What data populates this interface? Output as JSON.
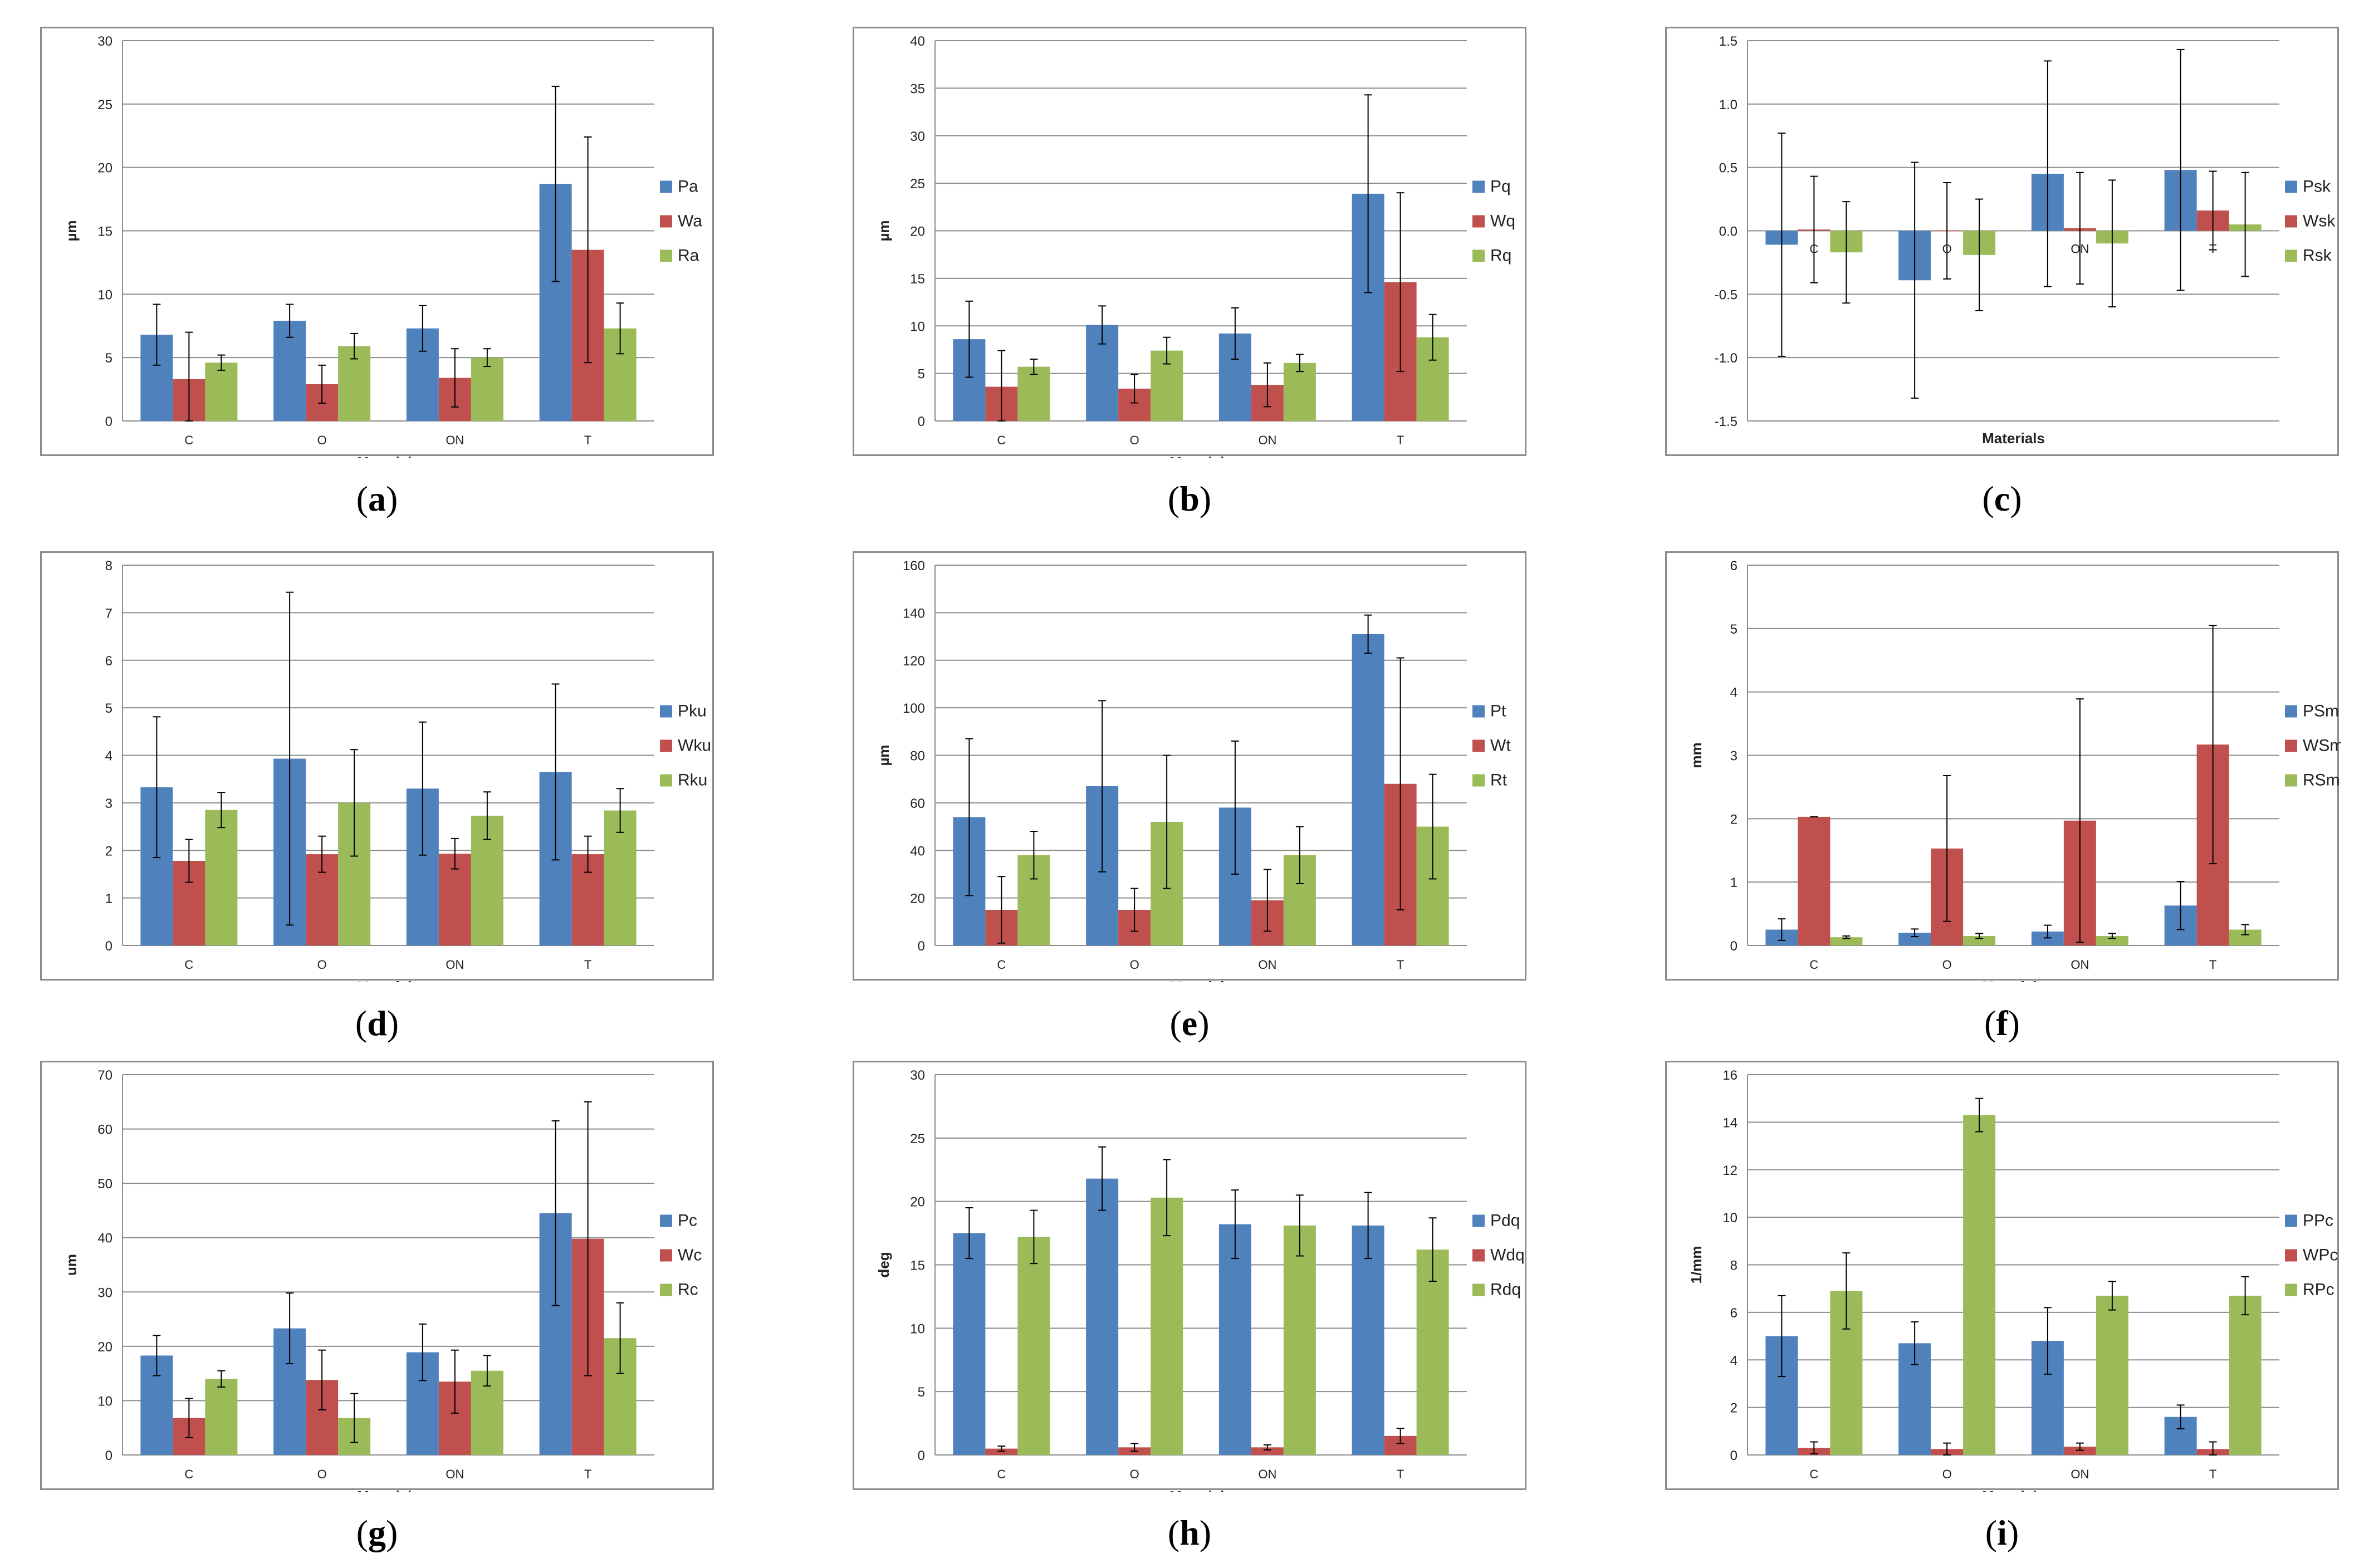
{
  "colors": {
    "P": "#4f81bd",
    "W": "#c0504d",
    "R": "#9bbb59",
    "grid": "#8c8c8c",
    "error": "#000000"
  },
  "chart_data": [
    {
      "id": "a",
      "caption": "a",
      "type": "bar",
      "xlabel": "Materials",
      "ylabel": "µm",
      "categories": [
        "C",
        "O",
        "ON",
        "T"
      ],
      "ylim": [
        0,
        30
      ],
      "yticks": [
        0,
        5,
        10,
        15,
        20,
        25,
        30
      ],
      "tick_decimals": 0,
      "category_labels_inside": false,
      "series": [
        {
          "name": "Pa",
          "values": [
            6.8,
            7.9,
            7.3,
            18.7
          ],
          "errors": [
            2.4,
            1.3,
            1.8,
            7.7
          ]
        },
        {
          "name": "Wa",
          "values": [
            3.3,
            2.9,
            3.4,
            13.5
          ],
          "errors": [
            3.7,
            1.5,
            2.3,
            8.9
          ]
        },
        {
          "name": "Ra",
          "values": [
            4.6,
            5.9,
            5.0,
            7.3
          ],
          "errors": [
            0.6,
            1.0,
            0.7,
            2.0
          ]
        }
      ]
    },
    {
      "id": "b",
      "caption": "b",
      "type": "bar",
      "xlabel": "Materials",
      "ylabel": "µm",
      "categories": [
        "C",
        "O",
        "ON",
        "T"
      ],
      "ylim": [
        0,
        40
      ],
      "yticks": [
        0,
        5,
        10,
        15,
        20,
        25,
        30,
        35,
        40
      ],
      "tick_decimals": 0,
      "category_labels_inside": false,
      "series": [
        {
          "name": "Pq",
          "values": [
            8.6,
            10.1,
            9.2,
            23.9
          ],
          "errors": [
            4.0,
            2.0,
            2.7,
            10.4
          ]
        },
        {
          "name": "Wq",
          "values": [
            3.6,
            3.4,
            3.8,
            14.6
          ],
          "errors": [
            3.8,
            1.5,
            2.3,
            9.4
          ]
        },
        {
          "name": "Rq",
          "values": [
            5.7,
            7.4,
            6.1,
            8.8
          ],
          "errors": [
            0.8,
            1.4,
            0.9,
            2.4
          ]
        }
      ]
    },
    {
      "id": "c",
      "caption": "c",
      "type": "bar",
      "xlabel": "Materials",
      "ylabel": "",
      "categories": [
        "C",
        "O",
        "ON",
        "T"
      ],
      "ylim": [
        -1.5,
        1.5
      ],
      "yticks": [
        -1.5,
        -1.0,
        -0.5,
        0.0,
        0.5,
        1.0,
        1.5
      ],
      "tick_decimals": 1,
      "category_labels_inside": true,
      "series": [
        {
          "name": "Psk",
          "values": [
            -0.11,
            -0.39,
            0.45,
            0.48
          ],
          "errors": [
            0.88,
            0.93,
            0.89,
            0.95
          ]
        },
        {
          "name": "Wsk",
          "values": [
            0.01,
            0.0,
            0.02,
            0.16
          ],
          "errors": [
            0.42,
            0.38,
            0.44,
            0.31
          ]
        },
        {
          "name": "Rsk",
          "values": [
            -0.17,
            -0.19,
            -0.1,
            0.05
          ],
          "errors": [
            0.4,
            0.44,
            0.5,
            0.41
          ]
        }
      ]
    },
    {
      "id": "d",
      "caption": "d",
      "type": "bar",
      "xlabel": "Materials",
      "ylabel": "",
      "categories": [
        "C",
        "O",
        "ON",
        "T"
      ],
      "ylim": [
        0,
        8
      ],
      "yticks": [
        0,
        1,
        2,
        3,
        4,
        5,
        6,
        7,
        8
      ],
      "tick_decimals": 0,
      "category_labels_inside": false,
      "series": [
        {
          "name": "Pku",
          "values": [
            3.33,
            3.93,
            3.3,
            3.65
          ],
          "errors": [
            1.48,
            3.5,
            1.4,
            1.85
          ]
        },
        {
          "name": "Wku",
          "values": [
            1.78,
            1.92,
            1.93,
            1.92
          ],
          "errors": [
            0.45,
            0.38,
            0.32,
            0.38
          ]
        },
        {
          "name": "Rku",
          "values": [
            2.85,
            3.0,
            2.73,
            2.84
          ],
          "errors": [
            0.37,
            1.12,
            0.5,
            0.46
          ]
        }
      ]
    },
    {
      "id": "e",
      "caption": "e",
      "type": "bar",
      "xlabel": "Materials",
      "ylabel": "µm",
      "categories": [
        "C",
        "O",
        "ON",
        "T"
      ],
      "ylim": [
        0,
        160
      ],
      "yticks": [
        0,
        20,
        40,
        60,
        80,
        100,
        120,
        140,
        160
      ],
      "tick_decimals": 0,
      "category_labels_inside": false,
      "series": [
        {
          "name": "Pt",
          "values": [
            54,
            67,
            58,
            131
          ],
          "errors": [
            33,
            36,
            28,
            8
          ]
        },
        {
          "name": "Wt",
          "values": [
            15,
            15,
            19,
            68
          ],
          "errors": [
            14,
            9,
            13,
            53
          ]
        },
        {
          "name": "Rt",
          "values": [
            38,
            52,
            38,
            50
          ],
          "errors": [
            10,
            28,
            12,
            22
          ]
        }
      ]
    },
    {
      "id": "f",
      "caption": "f",
      "type": "bar",
      "xlabel": "Materials",
      "ylabel": "mm",
      "categories": [
        "C",
        "O",
        "ON",
        "T"
      ],
      "ylim": [
        0,
        6
      ],
      "yticks": [
        0,
        1,
        2,
        3,
        4,
        5,
        6
      ],
      "tick_decimals": 0,
      "category_labels_inside": false,
      "series": [
        {
          "name": "PSm",
          "values": [
            0.25,
            0.2,
            0.22,
            0.63
          ],
          "errors": [
            0.17,
            0.06,
            0.1,
            0.38
          ]
        },
        {
          "name": "WSm",
          "values": [
            2.03,
            1.53,
            1.97,
            3.17
          ],
          "errors": [
            0.0,
            1.15,
            1.92,
            1.88
          ]
        },
        {
          "name": "RSm",
          "values": [
            0.13,
            0.15,
            0.15,
            0.25
          ],
          "errors": [
            0.02,
            0.04,
            0.04,
            0.08
          ]
        }
      ]
    },
    {
      "id": "g",
      "caption": "g",
      "type": "bar",
      "xlabel": "Materials",
      "ylabel": "um",
      "categories": [
        "C",
        "O",
        "ON",
        "T"
      ],
      "ylim": [
        0,
        70
      ],
      "yticks": [
        0,
        10,
        20,
        30,
        40,
        50,
        60,
        70
      ],
      "tick_decimals": 0,
      "category_labels_inside": false,
      "series": [
        {
          "name": "Pc",
          "values": [
            18.3,
            23.3,
            18.9,
            44.5
          ],
          "errors": [
            3.7,
            6.5,
            5.2,
            17.0
          ]
        },
        {
          "name": "Wc",
          "values": [
            6.8,
            13.8,
            13.5,
            39.8
          ],
          "errors": [
            3.6,
            5.5,
            5.8,
            25.2
          ]
        },
        {
          "name": "Rc",
          "values": [
            14.0,
            6.8,
            15.5,
            21.5
          ],
          "errors": [
            1.5,
            4.5,
            2.8,
            6.5
          ]
        }
      ]
    },
    {
      "id": "h",
      "caption": "h",
      "type": "bar",
      "xlabel": "Materials",
      "ylabel": "deg",
      "categories": [
        "C",
        "O",
        "ON",
        "T"
      ],
      "ylim": [
        0,
        30
      ],
      "yticks": [
        0,
        5,
        10,
        15,
        20,
        25,
        30
      ],
      "tick_decimals": 0,
      "category_labels_inside": false,
      "series": [
        {
          "name": "Pdq",
          "values": [
            17.5,
            21.8,
            18.2,
            18.1
          ],
          "errors": [
            2.0,
            2.5,
            2.7,
            2.6
          ]
        },
        {
          "name": "Wdq",
          "values": [
            0.5,
            0.6,
            0.6,
            1.5
          ],
          "errors": [
            0.2,
            0.3,
            0.2,
            0.6
          ]
        },
        {
          "name": "Rdq",
          "values": [
            17.2,
            20.3,
            18.1,
            16.2
          ],
          "errors": [
            2.1,
            3.0,
            2.4,
            2.5
          ]
        }
      ]
    },
    {
      "id": "i",
      "caption": "i",
      "type": "bar",
      "xlabel": "Materials",
      "ylabel": "1/mm",
      "categories": [
        "C",
        "O",
        "ON",
        "T"
      ],
      "ylim": [
        0,
        16
      ],
      "yticks": [
        0,
        2,
        4,
        6,
        8,
        10,
        12,
        14,
        16
      ],
      "tick_decimals": 0,
      "category_labels_inside": false,
      "series": [
        {
          "name": "PPc",
          "values": [
            5.0,
            4.7,
            4.8,
            1.6
          ],
          "errors": [
            1.7,
            0.9,
            1.4,
            0.5
          ]
        },
        {
          "name": "WPc",
          "values": [
            0.3,
            0.25,
            0.35,
            0.25
          ],
          "errors": [
            0.25,
            0.25,
            0.15,
            0.3
          ]
        },
        {
          "name": "RPc",
          "values": [
            6.9,
            14.3,
            6.7,
            6.7
          ],
          "errors": [
            1.6,
            0.7,
            0.6,
            0.8
          ]
        }
      ]
    }
  ]
}
